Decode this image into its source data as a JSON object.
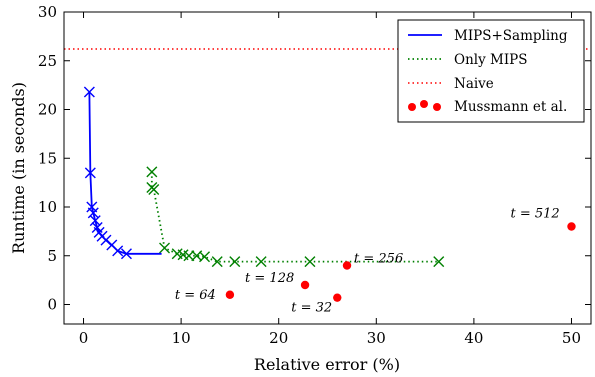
{
  "chart_data": {
    "type": "line",
    "xlabel": "Relative error (%)",
    "ylabel": "Runtime (in seconds)",
    "xlim": [
      -2,
      52
    ],
    "ylim": [
      -2,
      30
    ],
    "xticks": [
      "0",
      "10",
      "20",
      "30",
      "40",
      "50"
    ],
    "yticks": [
      "0",
      "5",
      "10",
      "15",
      "20",
      "25",
      "30"
    ],
    "xtick_values": [
      0,
      10,
      20,
      30,
      40,
      50
    ],
    "ytick_values": [
      0,
      5,
      10,
      15,
      20,
      25,
      30
    ],
    "grid": false,
    "legend_position": "top-right",
    "series": [
      {
        "name": "MIPS+Sampling",
        "style": "solid line with x markers",
        "color": "#0000ff",
        "points": [
          [
            0.6,
            21.8
          ],
          [
            0.7,
            13.5
          ],
          [
            0.85,
            10.0
          ],
          [
            1.0,
            9.4
          ],
          [
            1.2,
            8.6
          ],
          [
            1.4,
            7.9
          ],
          [
            1.6,
            7.4
          ],
          [
            1.9,
            7.0
          ],
          [
            2.3,
            6.6
          ],
          [
            2.9,
            6.1
          ],
          [
            3.5,
            5.5
          ],
          [
            4.4,
            5.2
          ],
          [
            8.0,
            5.2
          ]
        ],
        "marked_points": [
          [
            0.6,
            21.8
          ],
          [
            0.7,
            13.5
          ],
          [
            0.85,
            10.0
          ],
          [
            1.0,
            9.4
          ],
          [
            1.2,
            8.6
          ],
          [
            1.4,
            7.9
          ],
          [
            1.6,
            7.4
          ],
          [
            1.9,
            7.0
          ],
          [
            2.3,
            6.6
          ],
          [
            2.9,
            6.1
          ],
          [
            3.5,
            5.5
          ],
          [
            4.4,
            5.2
          ]
        ]
      },
      {
        "name": "Only MIPS",
        "style": "dotted line with x markers",
        "color": "#008000",
        "points": [
          [
            7.0,
            13.6
          ],
          [
            7.0,
            12.0
          ],
          [
            7.2,
            11.8
          ],
          [
            8.3,
            5.8
          ],
          [
            9.6,
            5.2
          ],
          [
            10.2,
            5.1
          ],
          [
            10.8,
            5.0
          ],
          [
            11.6,
            5.0
          ],
          [
            12.4,
            4.9
          ],
          [
            13.7,
            4.4
          ],
          [
            15.5,
            4.4
          ],
          [
            18.2,
            4.4
          ],
          [
            23.2,
            4.4
          ],
          [
            36.4,
            4.4
          ]
        ]
      },
      {
        "name": "Naive",
        "style": "dotted horizontal line",
        "color": "#ff0000",
        "y": 26.2
      },
      {
        "name": "Mussmann et al.",
        "style": "filled circles",
        "color": "#ff0000",
        "points": [
          [
            15.0,
            1.0
          ],
          [
            22.7,
            2.0
          ],
          [
            26.0,
            0.7
          ],
          [
            27.0,
            4.0
          ],
          [
            50.0,
            8.0
          ]
        ]
      }
    ],
    "annotations": [
      {
        "text": "t = 64",
        "x": 15.0,
        "y": 1.0
      },
      {
        "text": "t = 128",
        "x": 22.7,
        "y": 2.0
      },
      {
        "text": "t = 32",
        "x": 26.0,
        "y": 0.7
      },
      {
        "text": "t = 256",
        "x": 27.0,
        "y": 4.0
      },
      {
        "text": "t = 512",
        "x": 50.0,
        "y": 8.0
      }
    ]
  }
}
